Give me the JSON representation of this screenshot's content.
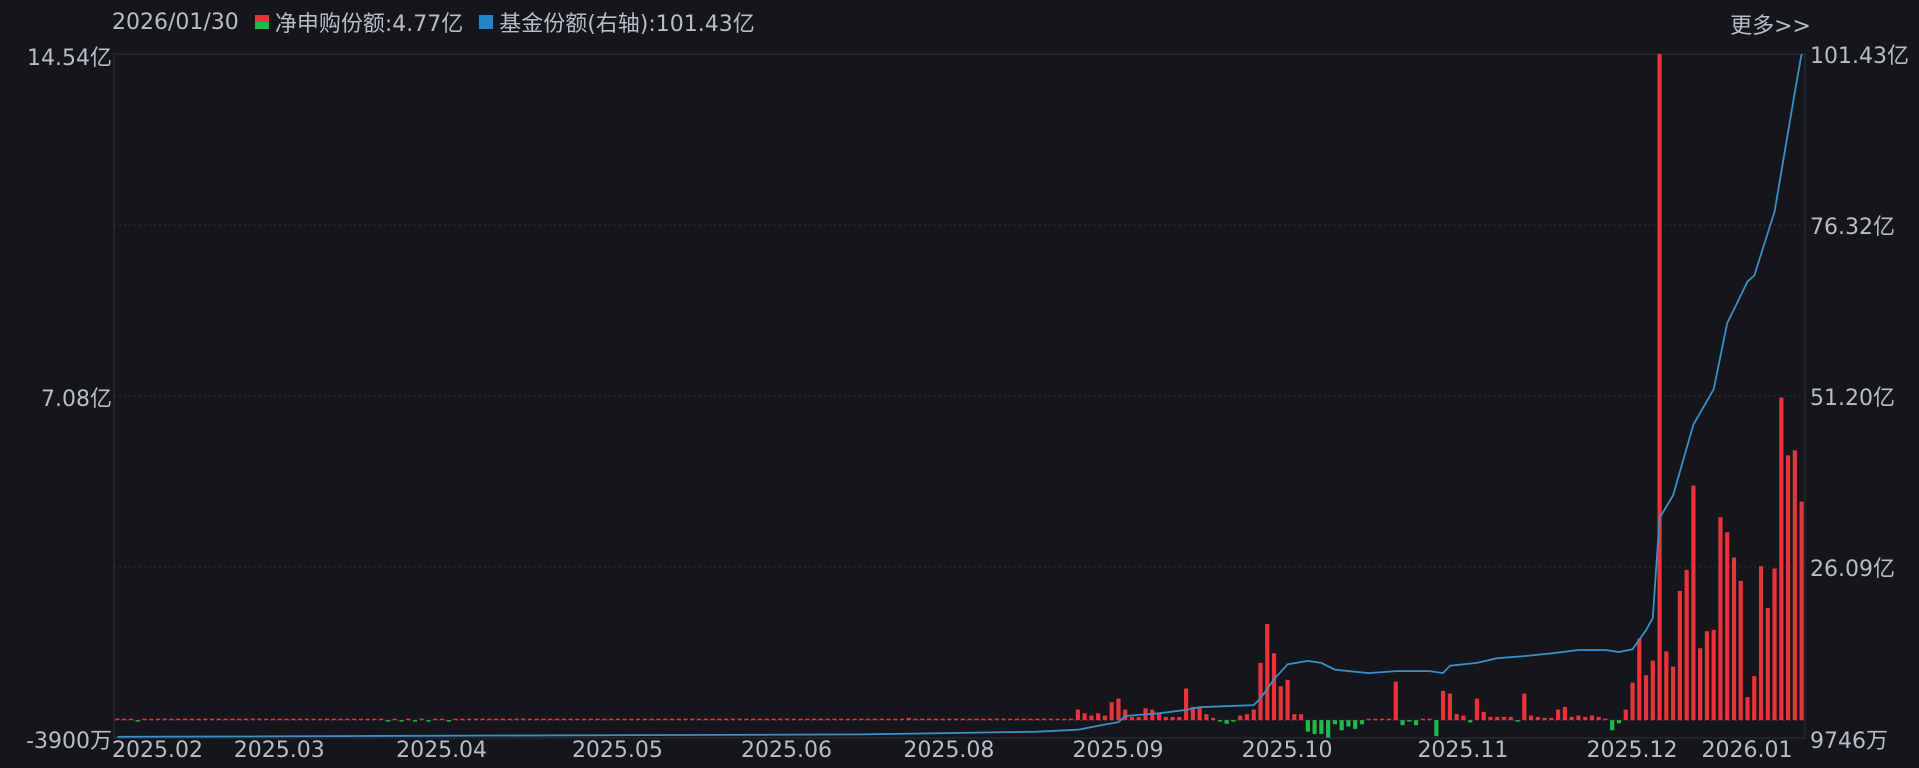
{
  "header": {
    "date": "2026/01/30",
    "more_label": "更多>>"
  },
  "legend": [
    {
      "label": "净申购份额:4.77亿",
      "color": "#e8333b"
    },
    {
      "label": "基金份额(右轴):101.43亿",
      "color": "#1f86c9"
    }
  ],
  "colors": {
    "background": "#14161b",
    "positive": "#e8333b",
    "negative": "#1fb84a",
    "line": "#3b8fc9",
    "grid": "#2c3036"
  },
  "chart_data": {
    "type": "bar+line",
    "left_axis": {
      "unit": "亿",
      "ylim": [
        -0.39,
        14.54
      ],
      "tick_labels": [
        "14.54亿",
        "7.08亿",
        "-3900万"
      ],
      "tick_values": [
        14.54,
        7.08,
        -0.39
      ]
    },
    "right_axis": {
      "unit": "亿",
      "ylim": [
        0.9746,
        101.43
      ],
      "tick_labels": [
        "101.43亿",
        "76.32亿",
        "51.20亿",
        "26.09亿",
        "9746万"
      ],
      "tick_values": [
        101.43,
        76.32,
        51.2,
        26.09,
        0.9746
      ]
    },
    "grid": true,
    "x_ticks": [
      {
        "label": "2025.02",
        "index": 0
      },
      {
        "label": "2025.03",
        "index": 18
      },
      {
        "label": "2025.04",
        "index": 42
      },
      {
        "label": "2025.05",
        "index": 68
      },
      {
        "label": "2025.06",
        "index": 93
      },
      {
        "label": "2025.08",
        "index": 117
      },
      {
        "label": "2025.09",
        "index": 142
      },
      {
        "label": "2025.10",
        "index": 167
      },
      {
        "label": "2025.11",
        "index": 193
      },
      {
        "label": "2025.12",
        "index": 218
      },
      {
        "label": "2026.01",
        "index": 235
      }
    ],
    "bars_net_subscription": [
      0.02,
      0.01,
      0.02,
      -0.01,
      0.02,
      0.01,
      0.01,
      0.02,
      0.01,
      0.02,
      0.01,
      0.02,
      0.01,
      0.01,
      0.02,
      0.01,
      0.02,
      0.01,
      0.02,
      0.01,
      0.02,
      0.01,
      0.02,
      0.01,
      0.01,
      0.02,
      0.02,
      0.01,
      0.02,
      0.01,
      0.01,
      0.02,
      0.01,
      0.02,
      0.01,
      0.01,
      0.02,
      0.01,
      0.02,
      0.02,
      -0.01,
      0.01,
      -0.01,
      0.01,
      -0.01,
      0.02,
      -0.01,
      0.01,
      0.01,
      -0.01,
      0.02,
      0.01,
      0.01,
      0.02,
      0.01,
      0.02,
      0.01,
      0.01,
      0.02,
      0.01,
      0.02,
      0.01,
      0.02,
      0.01,
      0.01,
      0.02,
      0.01,
      0.02,
      0.01,
      0.01,
      0.02,
      0.01,
      0.02,
      0.01,
      0.02,
      0.01,
      0.01,
      0.02,
      0.01,
      0.02,
      0.01,
      0.02,
      0.01,
      0.01,
      0.02,
      0.01,
      0.02,
      0.01,
      0.02,
      0.01,
      0.01,
      0.02,
      0.01,
      0.02,
      0.01,
      0.01,
      0.02,
      0.01,
      0.02,
      0.01,
      0.02,
      0.01,
      0.01,
      0.02,
      0.01,
      0.02,
      0.01,
      0.02,
      0.01,
      0.01,
      0.02,
      0.01,
      0.02,
      0.01,
      0.02,
      0.01,
      0.02,
      0.05,
      0.02,
      0.01,
      0.02,
      0.01,
      0.02,
      0.01,
      0.02,
      0.01,
      0.02,
      0.01,
      0.02,
      0.01,
      0.02,
      0.01,
      0.02,
      0.03,
      0.02,
      0.03,
      0.02,
      0.03,
      0.02,
      0.03,
      0.02,
      0.03,
      0.23,
      0.15,
      0.1,
      0.15,
      0.1,
      0.39,
      0.47,
      0.23,
      0.07,
      0.07,
      0.26,
      0.23,
      0.15,
      0.07,
      0.07,
      0.07,
      0.69,
      0.29,
      0.29,
      0.13,
      0.05,
      -0.01,
      -0.08,
      -0.01,
      0.1,
      0.13,
      0.23,
      1.25,
      2.1,
      1.46,
      0.74,
      0.88,
      0.13,
      0.13,
      -0.25,
      -0.3,
      -0.3,
      -0.38,
      -0.09,
      -0.22,
      -0.14,
      -0.19,
      -0.09,
      0.02,
      0.02,
      0.02,
      0.02,
      0.84,
      -0.11,
      -0.01,
      -0.11,
      0.02,
      0.02,
      -0.35,
      0.64,
      0.58,
      0.13,
      0.1,
      -0.05,
      0.47,
      0.18,
      0.07,
      0.07,
      0.07,
      0.07,
      -0.02,
      0.58,
      0.1,
      0.07,
      0.05,
      0.05,
      0.23,
      0.29,
      0.07,
      0.1,
      0.07,
      0.1,
      0.07,
      0.02,
      -0.22,
      -0.07,
      0.23,
      0.82,
      1.78,
      0.98,
      1.3,
      14.54,
      1.5,
      1.17,
      2.82,
      3.28,
      5.12,
      1.57,
      1.94,
      1.97,
      4.43,
      4.1,
      3.55,
      3.04,
      0.5,
      0.96,
      3.36,
      2.45,
      3.31,
      7.04,
      5.78,
      5.89,
      4.77
    ],
    "line_fund_shares": [
      [
        0,
        1.15
      ],
      [
        110,
        1.5
      ],
      [
        136,
        1.9
      ],
      [
        142,
        2.2
      ],
      [
        146,
        2.95
      ],
      [
        148,
        3.3
      ],
      [
        149,
        4.2
      ],
      [
        154,
        4.6
      ],
      [
        158,
        5.1
      ],
      [
        160,
        5.5
      ],
      [
        168,
        5.8
      ],
      [
        169,
        6.8
      ],
      [
        171,
        9.6
      ],
      [
        173,
        11.8
      ],
      [
        176,
        12.3
      ],
      [
        178,
        12.0
      ],
      [
        180,
        11.0
      ],
      [
        185,
        10.5
      ],
      [
        189,
        10.8
      ],
      [
        194,
        10.8
      ],
      [
        196,
        10.5
      ],
      [
        197,
        11.6
      ],
      [
        201,
        12.0
      ],
      [
        204,
        12.7
      ],
      [
        208,
        13.0
      ],
      [
        212,
        13.4
      ],
      [
        216,
        13.9
      ],
      [
        220,
        13.9
      ],
      [
        222,
        13.6
      ],
      [
        224,
        14.0
      ],
      [
        226,
        16.8
      ],
      [
        227,
        18.6
      ],
      [
        228,
        33.3
      ],
      [
        230,
        36.6
      ],
      [
        233,
        47.0
      ],
      [
        236,
        52.2
      ],
      [
        238,
        61.9
      ],
      [
        241,
        68.0
      ],
      [
        242,
        68.9
      ],
      [
        245,
        78.3
      ],
      [
        248,
        95.9
      ],
      [
        249,
        101.43
      ]
    ]
  }
}
